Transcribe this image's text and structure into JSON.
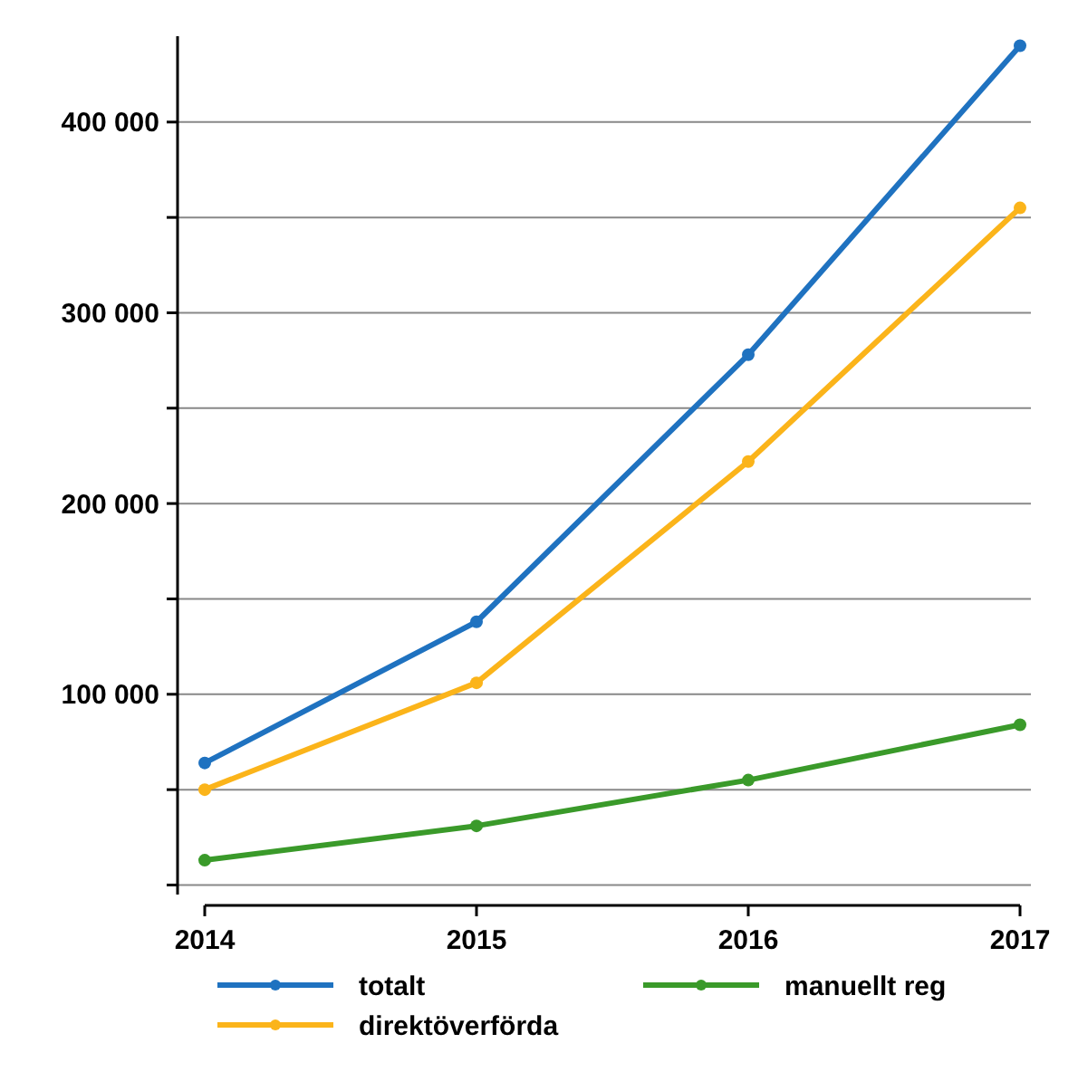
{
  "chart_data": {
    "type": "line",
    "x": [
      2014,
      2015,
      2016,
      2017
    ],
    "xlim": [
      2014,
      2017
    ],
    "xticks": [
      2014,
      2015,
      2016,
      2017
    ],
    "ylim": [
      -5000,
      445000
    ],
    "yticks": [
      {
        "value": 0,
        "label": null
      },
      {
        "value": 50000,
        "label": null
      },
      {
        "value": 100000,
        "label": "100 000"
      },
      {
        "value": 150000,
        "label": null
      },
      {
        "value": 200000,
        "label": "200 000"
      },
      {
        "value": 250000,
        "label": null
      },
      {
        "value": 300000,
        "label": "300 000"
      },
      {
        "value": 350000,
        "label": null
      },
      {
        "value": 400000,
        "label": "400 000"
      }
    ],
    "grid": "y",
    "legend": "bottom",
    "marker": "circle",
    "line_style": "solid",
    "series": [
      {
        "name": "totalt",
        "color": "#1f72c0",
        "values": [
          64000,
          138000,
          278000,
          440000
        ]
      },
      {
        "name": "direktöverförda",
        "color": "#fbb41a",
        "values": [
          50000,
          106000,
          222000,
          355000
        ]
      },
      {
        "name": "manuellt reg",
        "color": "#3a9a2a",
        "values": [
          13000,
          31000,
          55000,
          84000
        ]
      }
    ]
  }
}
